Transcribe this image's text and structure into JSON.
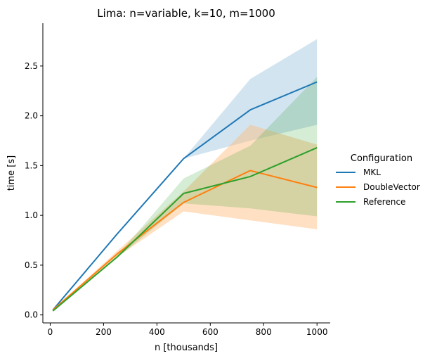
{
  "chart_data": {
    "type": "line",
    "title": "Lima: n=variable, k=10, m=1000",
    "xlabel": "n [thousands]",
    "ylabel": "time [s]",
    "xlim": [
      -27.5,
      1049.5
    ],
    "ylim": [
      -0.08,
      2.93
    ],
    "xticks": [
      0,
      200,
      400,
      600,
      800,
      1000
    ],
    "xtick_labels": [
      "0",
      "200",
      "400",
      "600",
      "800",
      "1000"
    ],
    "yticks": [
      0.0,
      0.5,
      1.0,
      1.5,
      2.0,
      2.5
    ],
    "ytick_labels": [
      "0.0",
      "0.5",
      "1.0",
      "1.5",
      "2.0",
      "2.5"
    ],
    "grid": false,
    "legend_title": "Configuration",
    "legend_position": "right",
    "x": [
      10,
      250,
      500,
      750,
      1000
    ],
    "series": [
      {
        "name": "MKL",
        "color": "#1f77b4",
        "band_color": "#1f77b4",
        "values": [
          0.05,
          0.81,
          1.57,
          2.06,
          2.34
        ],
        "ci_lower": [
          0.05,
          0.81,
          1.57,
          1.75,
          1.91
        ],
        "ci_upper": [
          0.05,
          0.81,
          1.57,
          2.37,
          2.77
        ]
      },
      {
        "name": "DoubleVector",
        "color": "#ff7f0e",
        "band_color": "#ffbb78",
        "values": [
          0.05,
          0.61,
          1.13,
          1.45,
          1.28
        ],
        "ci_lower": [
          0.05,
          0.58,
          1.04,
          0.95,
          0.86
        ],
        "ci_upper": [
          0.05,
          0.64,
          1.24,
          1.91,
          1.71
        ]
      },
      {
        "name": "Reference",
        "color": "#2ca02c",
        "band_color": "#2ca02c",
        "values": [
          0.04,
          0.58,
          1.22,
          1.39,
          1.68
        ],
        "ci_lower": [
          0.04,
          0.57,
          1.12,
          1.07,
          0.99
        ],
        "ci_upper": [
          0.04,
          0.59,
          1.37,
          1.7,
          2.39
        ]
      }
    ]
  }
}
